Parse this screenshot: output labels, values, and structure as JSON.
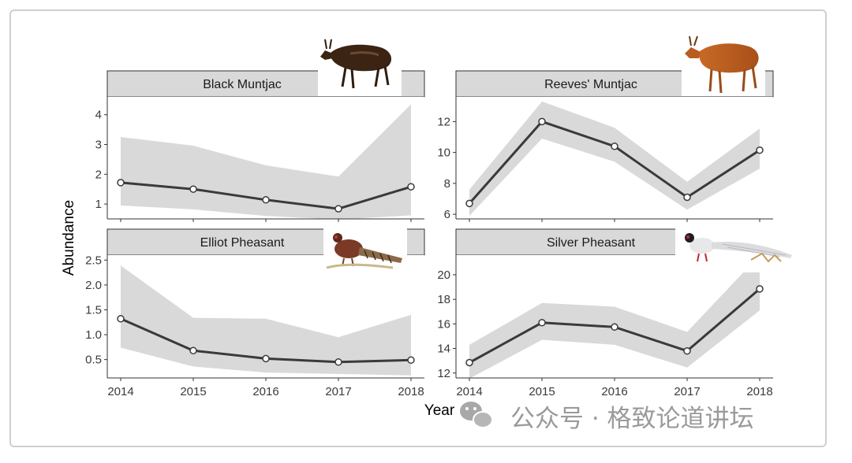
{
  "chart_data": {
    "type": "line",
    "xlabel": "Year",
    "ylabel": "Abundance",
    "x": [
      2014,
      2015,
      2016,
      2017,
      2018
    ],
    "x_tick_labels": [
      "2014",
      "2015",
      "2016",
      "2017",
      "2018"
    ],
    "grid": false,
    "series_color": "#3a3a3a",
    "ribbon_color": "#d9d9d9",
    "strip_color": "#d9d9d9",
    "panels": [
      {
        "title": "Black Muntjac",
        "values": [
          1.72,
          1.5,
          1.14,
          0.84,
          1.58
        ],
        "lower": [
          0.95,
          0.82,
          0.6,
          0.48,
          0.62
        ],
        "upper": [
          3.25,
          2.96,
          2.3,
          1.92,
          4.35
        ],
        "ylim": [
          0.5,
          4.6
        ],
        "yticks": [
          1,
          2,
          3,
          4
        ],
        "ytick_labels": [
          "1",
          "2",
          "3",
          "4"
        ],
        "icon": "black-muntjac-illustration"
      },
      {
        "title": "Reeves' Muntjac",
        "values": [
          6.7,
          12.0,
          10.4,
          7.1,
          10.15
        ],
        "lower": [
          5.9,
          10.9,
          9.4,
          6.3,
          8.95
        ],
        "upper": [
          7.6,
          13.3,
          11.6,
          8.1,
          11.55
        ],
        "ylim": [
          5.7,
          13.6
        ],
        "yticks": [
          6,
          8,
          10,
          12
        ],
        "ytick_labels": [
          "6",
          "8",
          "10",
          "12"
        ],
        "icon": "reeves-muntjac-illustration"
      },
      {
        "title": "Elliot Pheasant",
        "values": [
          1.32,
          0.68,
          0.52,
          0.45,
          0.49
        ],
        "lower": [
          0.74,
          0.36,
          0.24,
          0.21,
          0.18
        ],
        "upper": [
          2.39,
          1.34,
          1.32,
          0.95,
          1.4
        ],
        "ylim": [
          0.13,
          2.6
        ],
        "yticks": [
          0.5,
          1.0,
          1.5,
          2.0,
          2.5
        ],
        "ytick_labels": [
          "0.5",
          "1.0",
          "1.5",
          "2.0",
          "2.5"
        ],
        "icon": "elliot-pheasant-illustration"
      },
      {
        "title": "Silver Pheasant",
        "values": [
          12.85,
          16.1,
          15.75,
          13.8,
          18.85
        ],
        "lower": [
          11.55,
          14.7,
          14.3,
          12.45,
          17.1
        ],
        "upper": [
          14.3,
          17.7,
          17.4,
          15.35,
          21.6
        ],
        "ylim": [
          11.6,
          21.6
        ],
        "yticks": [
          12,
          14,
          16,
          18,
          20
        ],
        "ytick_labels": [
          "12",
          "14",
          "16",
          "18",
          "20"
        ],
        "icon": "silver-pheasant-illustration"
      }
    ]
  },
  "watermark": {
    "text": "公众号 · 格致论道讲坛",
    "icon": "wechat-icon"
  }
}
